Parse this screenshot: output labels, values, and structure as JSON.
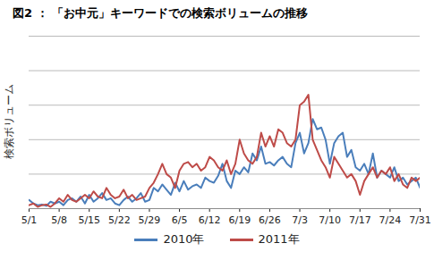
{
  "chart_data": {
    "type": "line",
    "title": "図2 ： 「お中元」キーワードでの検索ボリュームの推移",
    "y_label": "検索ボリューム",
    "categories": [
      "5/1",
      null,
      null,
      null,
      null,
      null,
      null,
      "5/8",
      null,
      null,
      null,
      null,
      null,
      null,
      "5/15",
      null,
      null,
      null,
      null,
      null,
      null,
      "5/22",
      null,
      null,
      null,
      null,
      null,
      null,
      "5/29",
      null,
      null,
      null,
      null,
      null,
      null,
      "6/5",
      null,
      null,
      null,
      null,
      null,
      null,
      "6/12",
      null,
      null,
      null,
      null,
      null,
      null,
      "6/19",
      null,
      null,
      null,
      null,
      null,
      null,
      "6/26",
      null,
      null,
      null,
      null,
      null,
      null,
      "7/3",
      null,
      null,
      null,
      null,
      null,
      null,
      "7/10",
      null,
      null,
      null,
      null,
      null,
      null,
      "7/17",
      null,
      null,
      null,
      null,
      null,
      null,
      "7/24",
      null,
      null,
      null,
      null,
      null,
      null,
      "7/31"
    ],
    "series": [
      {
        "name": "2010年",
        "color": "#4a7ebb",
        "values": [
          0.25,
          0.15,
          0.1,
          0.12,
          0.08,
          0.2,
          0.15,
          0.2,
          0.1,
          0.25,
          0.3,
          0.2,
          0.35,
          0.15,
          0.4,
          0.2,
          0.3,
          0.45,
          0.25,
          0.3,
          0.15,
          0.1,
          0.25,
          0.35,
          0.2,
          0.3,
          0.45,
          0.2,
          0.25,
          0.6,
          0.5,
          0.7,
          0.55,
          0.4,
          0.75,
          0.5,
          0.8,
          0.55,
          0.65,
          0.7,
          0.6,
          0.9,
          0.8,
          0.75,
          0.95,
          1.3,
          0.8,
          0.6,
          1.1,
          1.0,
          1.2,
          1.05,
          1.6,
          1.4,
          1.8,
          1.3,
          1.35,
          1.25,
          1.4,
          1.5,
          1.3,
          1.2,
          1.9,
          2.2,
          1.6,
          1.9,
          2.6,
          2.3,
          2.35,
          2.0,
          1.3,
          1.9,
          2.1,
          2.2,
          1.5,
          1.7,
          1.2,
          1.1,
          1.3,
          1.0,
          1.6,
          0.9,
          1.1,
          1.0,
          0.9,
          1.2,
          0.8,
          0.9,
          0.7,
          0.8,
          0.9,
          0.6
        ]
      },
      {
        "name": "2011年",
        "color": "#be4b48",
        "values": [
          0.1,
          0.15,
          0.05,
          0.1,
          0.12,
          0.05,
          0.15,
          0.3,
          0.2,
          0.4,
          0.25,
          0.2,
          0.3,
          0.4,
          0.3,
          0.5,
          0.35,
          0.3,
          0.6,
          0.4,
          0.3,
          0.35,
          0.55,
          0.3,
          0.4,
          0.25,
          0.3,
          0.35,
          0.6,
          0.75,
          1.0,
          1.3,
          1.0,
          0.9,
          0.6,
          1.1,
          1.3,
          1.35,
          1.2,
          1.3,
          1.1,
          1.2,
          1.5,
          1.4,
          1.2,
          1.1,
          1.4,
          1.0,
          1.3,
          2.0,
          1.6,
          1.4,
          1.3,
          1.5,
          2.2,
          1.8,
          2.1,
          1.8,
          2.3,
          2.2,
          1.9,
          1.8,
          2.0,
          3.0,
          3.1,
          3.3,
          2.0,
          1.7,
          1.4,
          1.2,
          0.9,
          1.5,
          1.3,
          1.1,
          0.9,
          1.0,
          0.8,
          0.4,
          0.8,
          1.0,
          1.2,
          0.9,
          1.1,
          1.0,
          1.2,
          0.8,
          1.0,
          0.7,
          0.6,
          0.9,
          0.8,
          0.9
        ]
      }
    ],
    "ylim": [
      0,
      5
    ],
    "yticks": [
      0,
      1,
      2,
      3,
      4,
      5
    ],
    "grid": true,
    "legend": "bottom",
    "tick_labels": "x"
  }
}
